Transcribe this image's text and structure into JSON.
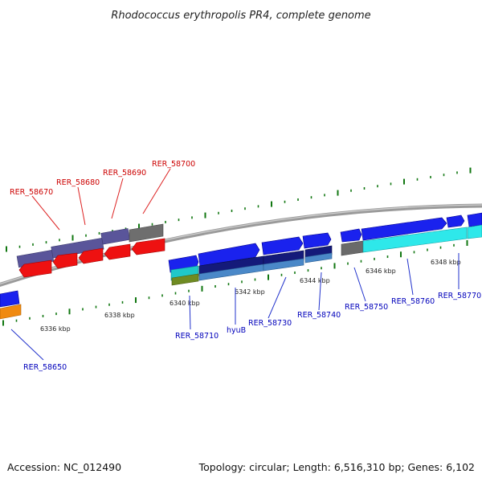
{
  "title": "Rhodococcus erythropolis PR4, complete genome",
  "footer": {
    "accession": "Accession: NC_012490",
    "summary": "Topology: circular; Length: 6,516,310 bp; Genes: 6,102"
  },
  "colors": {
    "backbone": "#8c8c8c",
    "tick": "#117711",
    "label_forward": "#0000bb",
    "label_reverse": "#cc0000",
    "leader_forward": "#2233cc",
    "leader_reverse": "#dd2222"
  },
  "scale_labels": [
    "6336 kbp",
    "6338 kbp",
    "6340 kbp",
    "6342 kbp",
    "6344 kbp",
    "6346 kbp",
    "6348 kbp"
  ],
  "gene_labels": {
    "reverse": [
      "RER_58670",
      "RER_58680",
      "RER_58690",
      "RER_58700"
    ],
    "forward": [
      "RER_58650",
      "RER_58710",
      "hyuB",
      "RER_58730",
      "RER_58740",
      "RER_58750",
      "RER_58760",
      "RER_58770"
    ]
  }
}
